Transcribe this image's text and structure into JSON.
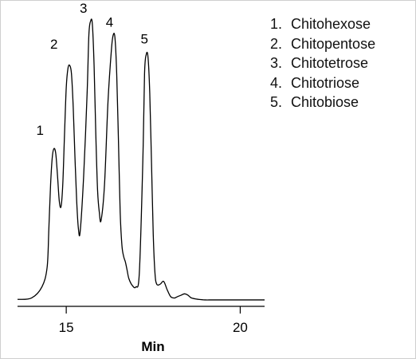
{
  "chart_data": {
    "type": "line",
    "title": "",
    "xlabel": "Min",
    "ylabel": "",
    "xlim": [
      13.6,
      20.7
    ],
    "ylim": [
      0,
      100
    ],
    "x_ticks": [
      15,
      20
    ],
    "grid": false,
    "legend_placement": "top-right",
    "series": [
      {
        "x": [
          13.6,
          14.0,
          14.3,
          14.45,
          14.5,
          14.55,
          14.6,
          14.65,
          14.7,
          14.75,
          14.8,
          14.85,
          14.9,
          14.95,
          15.0,
          15.05,
          15.1,
          15.15,
          15.2,
          15.25,
          15.3,
          15.35,
          15.4,
          15.5,
          15.6,
          15.65,
          15.7,
          15.75,
          15.8,
          15.85,
          15.9,
          15.95,
          16.0,
          16.1,
          16.2,
          16.3,
          16.35,
          16.4,
          16.45,
          16.5,
          16.55,
          16.6,
          16.65,
          16.7,
          16.75,
          16.8,
          16.9,
          17.0,
          17.1,
          17.2,
          17.25,
          17.3,
          17.35,
          17.4,
          17.45,
          17.5,
          17.55,
          17.6,
          17.7,
          17.8,
          17.9,
          18.0,
          18.1,
          18.15,
          18.2,
          18.3,
          18.4,
          18.5,
          18.6,
          18.8,
          19.0,
          19.1,
          19.2,
          19.3,
          19.5,
          19.8,
          20.2,
          20.7
        ],
        "y": [
          0.5,
          1.0,
          5.0,
          12.0,
          26.0,
          42.0,
          52.0,
          55.0,
          53.0,
          45.0,
          36.0,
          34.0,
          42.0,
          60.0,
          77.0,
          84.0,
          85.0,
          82.0,
          70.0,
          52.0,
          36.0,
          26.0,
          25.0,
          45.0,
          75.0,
          96.0,
          101.0,
          100.0,
          85.0,
          60.0,
          40.0,
          32.0,
          29.0,
          42.0,
          72.0,
          91.0,
          96.0,
          95.0,
          82.0,
          58.0,
          32.0,
          20.0,
          16.0,
          14.0,
          11.0,
          8.0,
          5.5,
          5.0,
          10.0,
          50.0,
          82.0,
          89.0,
          88.0,
          75.0,
          50.0,
          24.0,
          10.0,
          6.0,
          6.0,
          7.0,
          4.0,
          1.5,
          1.0,
          1.2,
          1.5,
          2.0,
          2.5,
          2.0,
          1.0,
          0.5,
          0.3,
          0.3,
          0.3,
          0.3,
          0.3,
          0.3,
          0.3,
          0.3
        ]
      }
    ],
    "peak_labels": [
      {
        "text": "1",
        "x": 14.55,
        "y": 60
      },
      {
        "text": "2",
        "x": 14.95,
        "y": 91
      },
      {
        "text": "3",
        "x": 15.8,
        "y": 104
      },
      {
        "text": "4",
        "x": 16.55,
        "y": 99
      },
      {
        "text": "5",
        "x": 17.55,
        "y": 93
      }
    ],
    "legend": [
      {
        "num": "1.",
        "label": "Chitohexose"
      },
      {
        "num": "2.",
        "label": "Chitopentose"
      },
      {
        "num": "3.",
        "label": "Chitotetrose"
      },
      {
        "num": "4.",
        "label": "Chitotriose"
      },
      {
        "num": "5.",
        "label": "Chitobiose"
      }
    ]
  }
}
